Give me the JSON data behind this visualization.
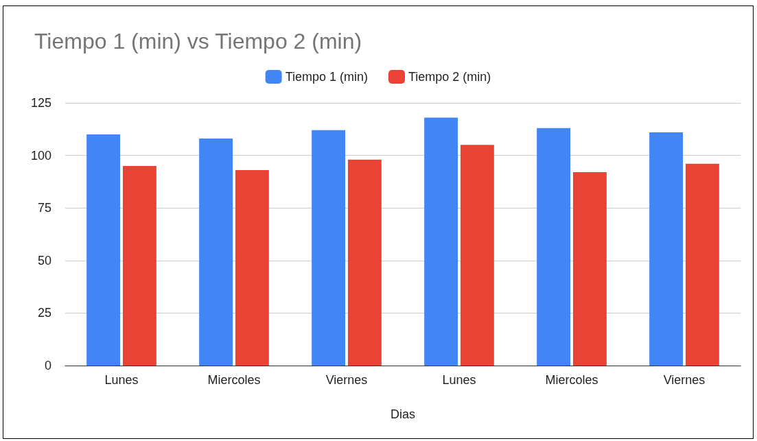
{
  "chart_data": {
    "type": "bar",
    "title": "Tiempo 1 (min) vs Tiempo 2 (min)",
    "xlabel": "Dias",
    "categories": [
      "Lunes",
      "Miercoles",
      "Viernes",
      "Lunes",
      "Miercoles",
      "Viernes"
    ],
    "series": [
      {
        "name": "Tiempo 1 (min)",
        "color": "#4285f4",
        "values": [
          110,
          108,
          112,
          118,
          113,
          111
        ]
      },
      {
        "name": "Tiempo 2 (min)",
        "color": "#ea4335",
        "values": [
          95,
          93,
          98,
          105,
          92,
          96
        ]
      }
    ],
    "ylim": [
      0,
      125
    ],
    "yticks": [
      0,
      25,
      50,
      75,
      100,
      125
    ],
    "grid": "y",
    "legend": "top"
  }
}
